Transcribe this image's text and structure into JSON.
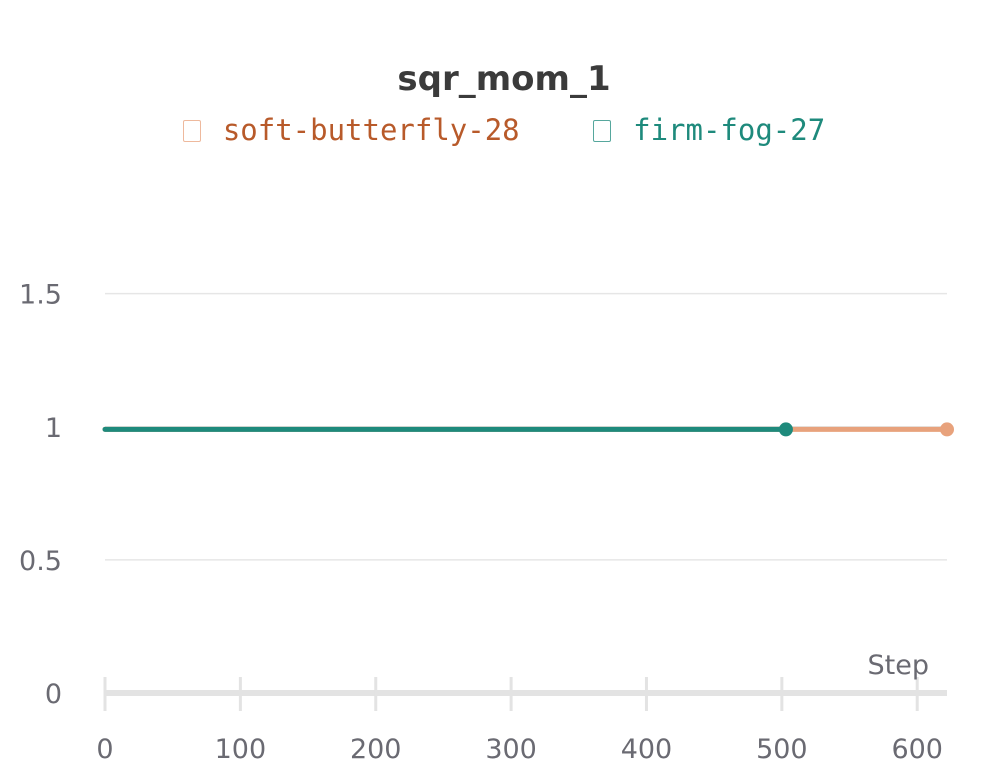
{
  "chart_data": {
    "type": "line",
    "title": "sqr_mom_1",
    "xlabel": "Step",
    "ylabel": "",
    "xlim": [
      0,
      622
    ],
    "ylim": [
      0,
      1.6
    ],
    "x_ticks": [
      0,
      100,
      200,
      300,
      400,
      500,
      600
    ],
    "y_ticks": [
      0,
      0.5,
      1,
      1.5
    ],
    "x_tick_labels": [
      "0",
      "100",
      "200",
      "300",
      "400",
      "500",
      "600"
    ],
    "y_tick_labels": [
      "0",
      "0.5",
      "1",
      "1.5"
    ],
    "grid": true,
    "legend_position": "top",
    "series": [
      {
        "name": "soft-butterfly-28",
        "color": "#e8a27c",
        "label_color": "#b85a2a",
        "x": [
          0,
          622
        ],
        "y": [
          0.99,
          0.99
        ],
        "end_marker": true
      },
      {
        "name": "firm-fog-27",
        "color": "#1e8a7c",
        "label_color": "#1e8a7c",
        "x": [
          0,
          503
        ],
        "y": [
          0.99,
          0.99
        ],
        "end_marker": true
      }
    ]
  }
}
